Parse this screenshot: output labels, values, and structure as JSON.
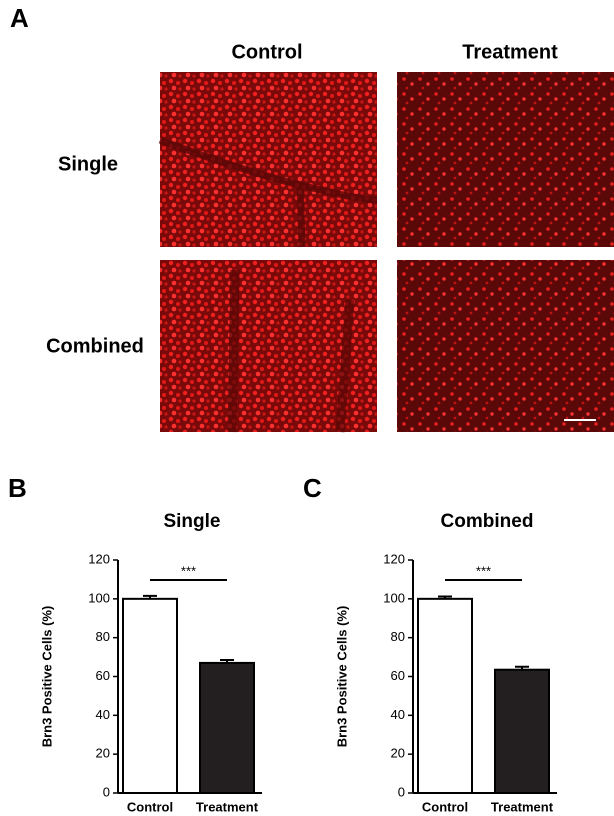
{
  "panel_a": {
    "label": "A",
    "columns": [
      "Control",
      "Treatment"
    ],
    "rows": [
      "Single",
      "Combined"
    ]
  },
  "chart_data": [
    {
      "type": "bar",
      "panel_label": "B",
      "title": "Single",
      "y_label": "Brn3 Positive Cells (%)",
      "categories": [
        "Control",
        "Treatment"
      ],
      "values": [
        100,
        67
      ],
      "errors": [
        1.5,
        1.5
      ],
      "colors": [
        "#ffffff",
        "#231f20"
      ],
      "ylim": [
        0,
        120
      ],
      "yticks": [
        0,
        20,
        40,
        60,
        80,
        100,
        120
      ],
      "annotation": "***"
    },
    {
      "type": "bar",
      "panel_label": "C",
      "title": "Combined",
      "y_label": "Brn3 Positive Cells (%)",
      "categories": [
        "Control",
        "Treatment"
      ],
      "values": [
        100,
        63.5
      ],
      "errors": [
        1.2,
        1.5
      ],
      "colors": [
        "#ffffff",
        "#231f20"
      ],
      "ylim": [
        0,
        120
      ],
      "yticks": [
        0,
        20,
        40,
        60,
        80,
        100,
        120
      ],
      "annotation": "***"
    }
  ]
}
